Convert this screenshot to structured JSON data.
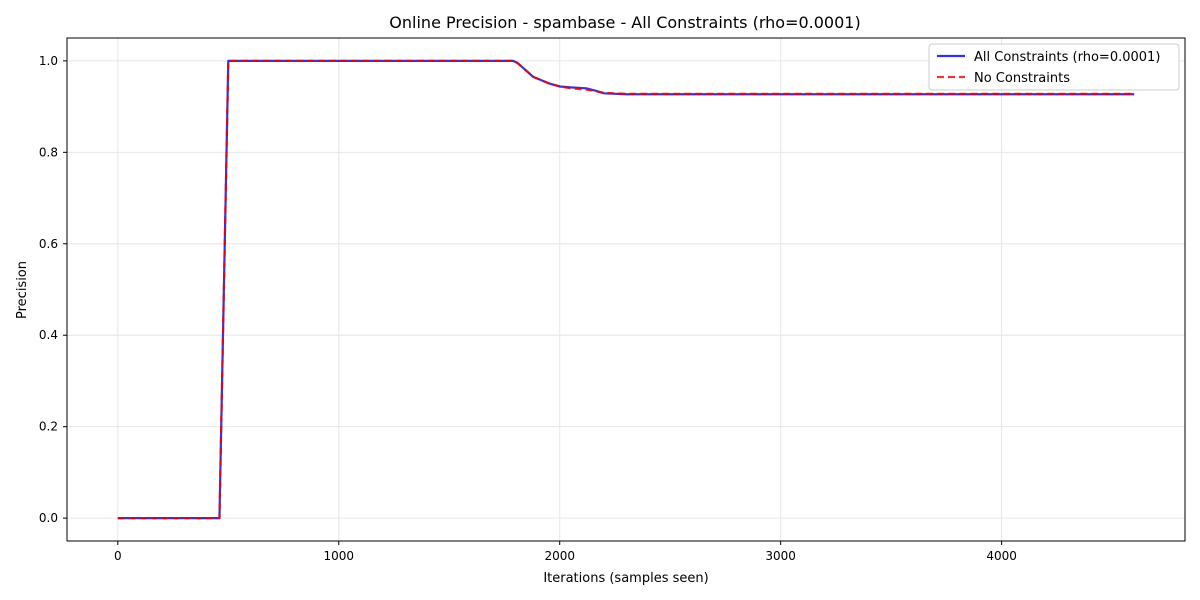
{
  "chart_data": {
    "type": "line",
    "title": "Online Precision - spambase - All Constraints (rho=0.0001)",
    "xlabel": "Iterations (samples seen)",
    "ylabel": "Precision",
    "xlim": [
      -230,
      4830
    ],
    "ylim": [
      -0.05,
      1.05
    ],
    "xticks": [
      0,
      1000,
      2000,
      3000,
      4000
    ],
    "yticks": [
      0.0,
      0.2,
      0.4,
      0.6,
      0.8,
      1.0
    ],
    "xtick_labels": [
      "0",
      "1000",
      "2000",
      "3000",
      "4000"
    ],
    "ytick_labels": [
      "0.0",
      "0.2",
      "0.4",
      "0.6",
      "0.8",
      "1.0"
    ],
    "grid": true,
    "legend_position": "top-right",
    "series": [
      {
        "name": "All Constraints (rho=0.0001)",
        "color": "#0000dd",
        "style": "solid",
        "x": [
          0,
          460,
          500,
          1790,
          1810,
          1850,
          1880,
          1950,
          2000,
          2050,
          2120,
          2160,
          2200,
          2300,
          2600,
          3000,
          3500,
          4000,
          4600
        ],
        "y": [
          0.0,
          0.0,
          1.0,
          1.0,
          0.995,
          0.978,
          0.965,
          0.951,
          0.944,
          0.942,
          0.94,
          0.935,
          0.929,
          0.927,
          0.927,
          0.927,
          0.927,
          0.927,
          0.927
        ]
      },
      {
        "name": "No Constraints",
        "color": "#ee0000",
        "style": "dashed",
        "x": [
          0,
          460,
          500,
          1790,
          1810,
          1850,
          1880,
          1950,
          2000,
          2050,
          2120,
          2160,
          2200,
          2300,
          2600,
          3000,
          3500,
          4000,
          4600
        ],
        "y": [
          0.0,
          0.0,
          1.0,
          1.0,
          0.995,
          0.978,
          0.965,
          0.951,
          0.944,
          0.94,
          0.937,
          0.934,
          0.93,
          0.928,
          0.928,
          0.928,
          0.928,
          0.928,
          0.928
        ]
      }
    ]
  }
}
